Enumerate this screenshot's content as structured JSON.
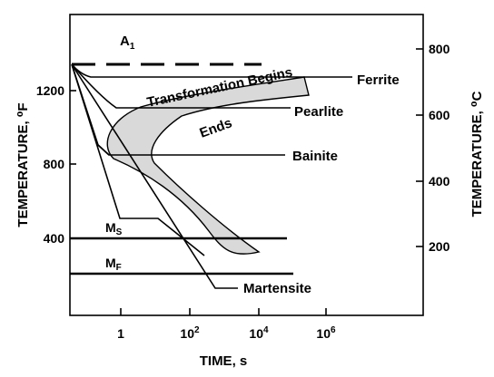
{
  "axes": {
    "x_title": "TIME, s",
    "left_title": "TEMPERATURE, ⁰F",
    "right_title": "TEMPERATURE, ⁰C",
    "x_scale": "log",
    "x_ticks": [
      {
        "base": "1",
        "exp": ""
      },
      {
        "base": "10",
        "exp": "2"
      },
      {
        "base": "10",
        "exp": "4"
      },
      {
        "base": "10",
        "exp": "6"
      }
    ],
    "left_ticks": [
      "1200",
      "800",
      "400"
    ],
    "right_ticks": [
      "800",
      "600",
      "400",
      "200"
    ]
  },
  "labels": {
    "a1": "A",
    "a1_sub": "1",
    "transformation_begins": "Transformation Begins",
    "ends": "Ends",
    "ferrite": "Ferrite",
    "pearlite": "Pearlite",
    "bainite": "Bainite",
    "martensite": "Martensite",
    "ms": "M",
    "ms_sub": "S",
    "mf": "M",
    "mf_sub": "F"
  },
  "colors": {
    "band_fill": "#d9d9d9",
    "line": "#000000",
    "background": "#ffffff"
  }
}
